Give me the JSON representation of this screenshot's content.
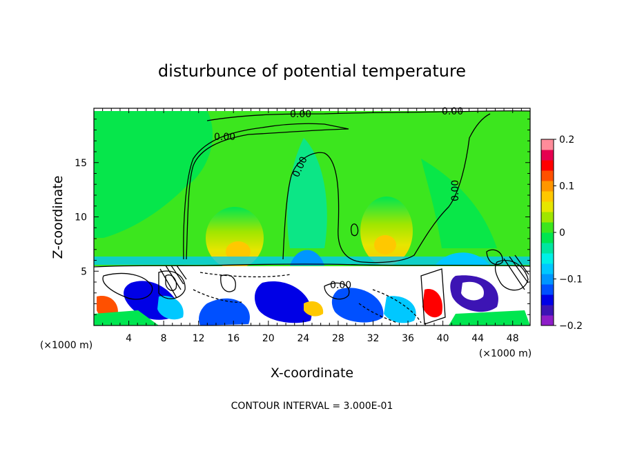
{
  "chart_data": {
    "type": "heatmap",
    "title": "disturbunce of potential temperature",
    "xlabel": "X-coordinate",
    "ylabel": "Z-coordinate",
    "x_unit": "(×1000 m)",
    "y_unit": "(×1000 m)",
    "xlim": [
      0,
      50
    ],
    "ylim": [
      0,
      20
    ],
    "x_ticks": [
      4,
      8,
      12,
      16,
      20,
      24,
      28,
      32,
      36,
      40,
      44,
      48
    ],
    "y_ticks": [
      5,
      10,
      15
    ],
    "colorbar": {
      "min": -0.2,
      "max": 0.2,
      "ticks": [
        {
          "value": 0.2,
          "label": "0.2"
        },
        {
          "value": 0.1,
          "label": "0.1"
        },
        {
          "value": 0.0,
          "label": "0"
        },
        {
          "value": -0.1,
          "label": "−0.1"
        },
        {
          "value": -0.2,
          "label": "−0.2"
        }
      ],
      "colors": [
        "#8e1ec8",
        "#3c14b4",
        "#0000e6",
        "#0050ff",
        "#0096ff",
        "#00c8ff",
        "#00f0e6",
        "#00e6a0",
        "#00e650",
        "#3ce61e",
        "#a0e600",
        "#e6e600",
        "#ffc800",
        "#ff9600",
        "#ff5000",
        "#ff0000",
        "#e60050",
        "#ff8c9a"
      ]
    },
    "contour_labels": [
      "0.00",
      "0.00",
      "0.00",
      "0.00",
      "0.00",
      "0.00"
    ],
    "footer": "CONTOUR INTERVAL = 3.000E-01",
    "colors": {
      "background_field": "#3ce61e",
      "upper_cyan": "#00e6a0",
      "warm_core": "#ffc800",
      "low_blue": "#0000e6"
    }
  }
}
